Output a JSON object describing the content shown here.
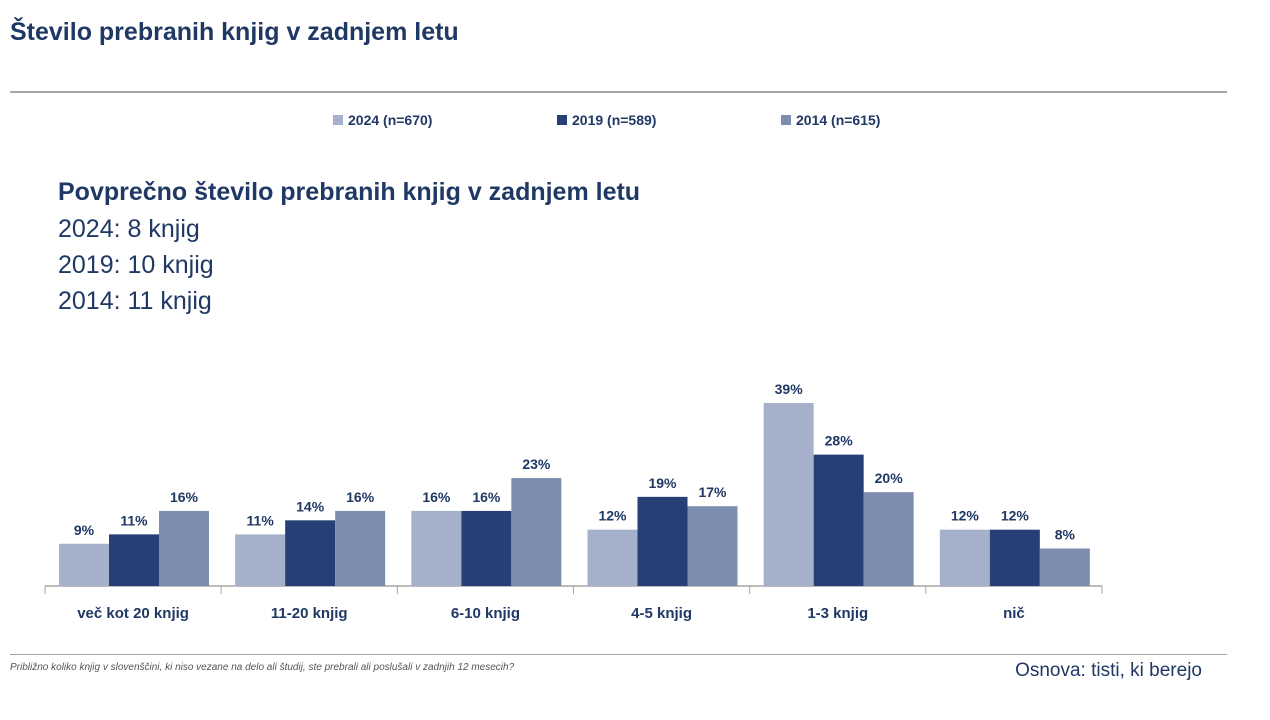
{
  "header": {
    "title": "Število prebranih knjig v zadnjem letu"
  },
  "summary": {
    "heading": "Povprečno število prebranih knjig v zadnjem letu",
    "lines": [
      "2024: 8 knjig",
      "2019: 10 knjig",
      "2014: 11 knjig"
    ]
  },
  "colors": {
    "series_2024": "#a5b1cb",
    "series_2019": "#263f76",
    "series_2014": "#7c8db0",
    "text": "#1f3864",
    "axis": "#a6a6a6"
  },
  "chart_data": {
    "type": "bar",
    "categories": [
      "več kot 20 knjig",
      "11-20 knjig",
      "6-10 knjig",
      "4-5 knjig",
      "1-3 knjig",
      "nič"
    ],
    "series": [
      {
        "name": "2024 (n=670)",
        "values": [
          9,
          11,
          16,
          12,
          39,
          12
        ]
      },
      {
        "name": "2019 (n=589)",
        "values": [
          11,
          14,
          16,
          19,
          28,
          12
        ]
      },
      {
        "name": "2014 (n=615)",
        "values": [
          16,
          16,
          23,
          17,
          20,
          8
        ]
      }
    ],
    "value_suffix": "%",
    "title": "",
    "xlabel": "",
    "ylabel": "",
    "ylim": [
      0,
      40
    ],
    "grid": false,
    "legend_position": "top"
  },
  "footer": {
    "question": "Približno koliko knjig v slovenščini, ki niso vezane na delo ali študij, ste prebrali ali poslušali v zadnjih 12 mesecih?",
    "basis": "Osnova: tisti, ki berejo"
  }
}
